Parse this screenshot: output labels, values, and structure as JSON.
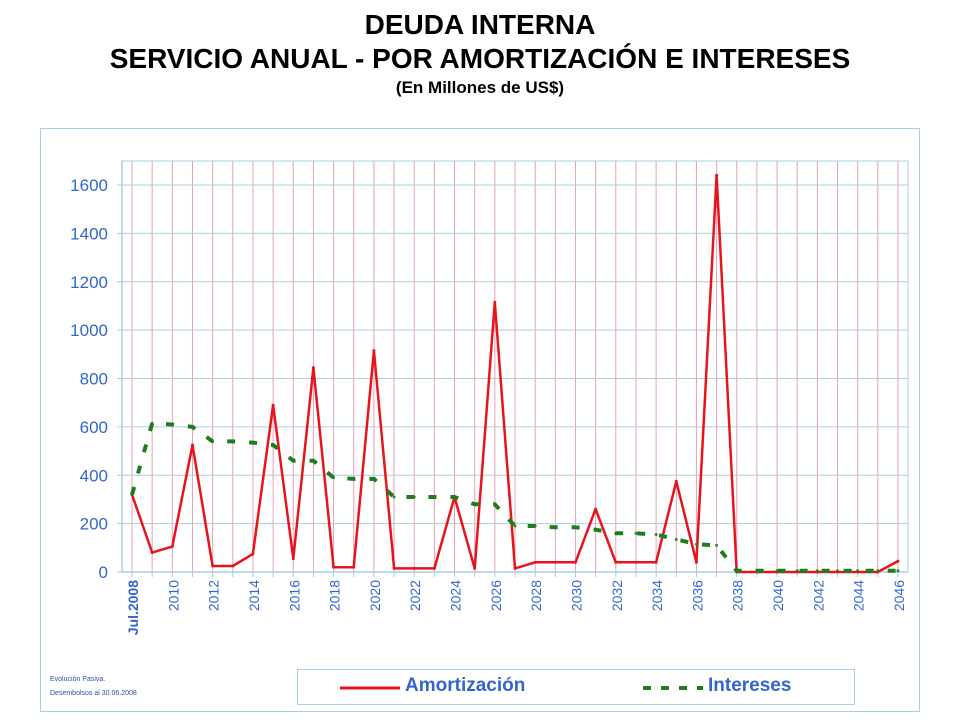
{
  "title": {
    "line1": "DEUDA INTERNA",
    "line2": "SERVICIO ANUAL - POR AMORTIZACIÓN E INTERESES",
    "subtitle": "(En Millones de US$)"
  },
  "footnote": {
    "line1": "Evolución Pasiva.",
    "line2": "Desembolsos al 30.06.2008"
  },
  "colors": {
    "amortizacion": "#e8141b",
    "intereses": "#1e7d1e",
    "grid_vertical": "#e8a0b8",
    "grid_horizontal": "#a9cfe6",
    "axis_text": "#3366cc"
  },
  "chart_data": {
    "type": "line",
    "title": "DEUDA INTERNA SERVICIO ANUAL - POR AMORTIZACIÓN E INTERESES",
    "subtitle": "(En Millones de US$)",
    "xlabel": "",
    "ylabel": "",
    "ylim": [
      0,
      1700
    ],
    "yticks": [
      0,
      200,
      400,
      600,
      800,
      1000,
      1200,
      1400,
      1600
    ],
    "x": [
      "Jul.2008",
      "2009",
      "2010",
      "2011",
      "2012",
      "2013",
      "2014",
      "2015",
      "2016",
      "2017",
      "2018",
      "2019",
      "2020",
      "2021",
      "2022",
      "2023",
      "2024",
      "2025",
      "2026",
      "2027",
      "2028",
      "2029",
      "2030",
      "2031",
      "2032",
      "2033",
      "2034",
      "2035",
      "2036",
      "2037",
      "2038",
      "2039",
      "2040",
      "2041",
      "2042",
      "2043",
      "2044",
      "2045",
      "2046"
    ],
    "xtick_labels": [
      "Jul.2008",
      "",
      "2010",
      "",
      "2012",
      "",
      "2014",
      "",
      "2016",
      "",
      "2018",
      "",
      "2020",
      "",
      "2022",
      "",
      "2024",
      "",
      "2026",
      "",
      "2028",
      "",
      "2030",
      "",
      "2032",
      "",
      "2034",
      "",
      "2036",
      "",
      "2038",
      "",
      "2040",
      "",
      "2042",
      "",
      "2044",
      "",
      "2046"
    ],
    "grid": "vertical and horizontal",
    "legend_position": "bottom",
    "series": [
      {
        "name": "Amortización",
        "style": "solid",
        "values": [
          320,
          80,
          105,
          525,
          25,
          25,
          75,
          690,
          55,
          845,
          20,
          20,
          915,
          15,
          15,
          15,
          310,
          15,
          1115,
          15,
          40,
          40,
          40,
          260,
          40,
          40,
          40,
          375,
          40,
          1640,
          0,
          0,
          0,
          0,
          0,
          0,
          0,
          0,
          45
        ]
      },
      {
        "name": "Intereses",
        "style": "dashed",
        "values": [
          320,
          615,
          610,
          600,
          540,
          540,
          535,
          525,
          460,
          460,
          390,
          385,
          385,
          310,
          310,
          310,
          310,
          280,
          280,
          190,
          190,
          185,
          185,
          175,
          160,
          160,
          155,
          135,
          115,
          110,
          5,
          5,
          5,
          5,
          5,
          5,
          5,
          5,
          5
        ]
      }
    ]
  }
}
